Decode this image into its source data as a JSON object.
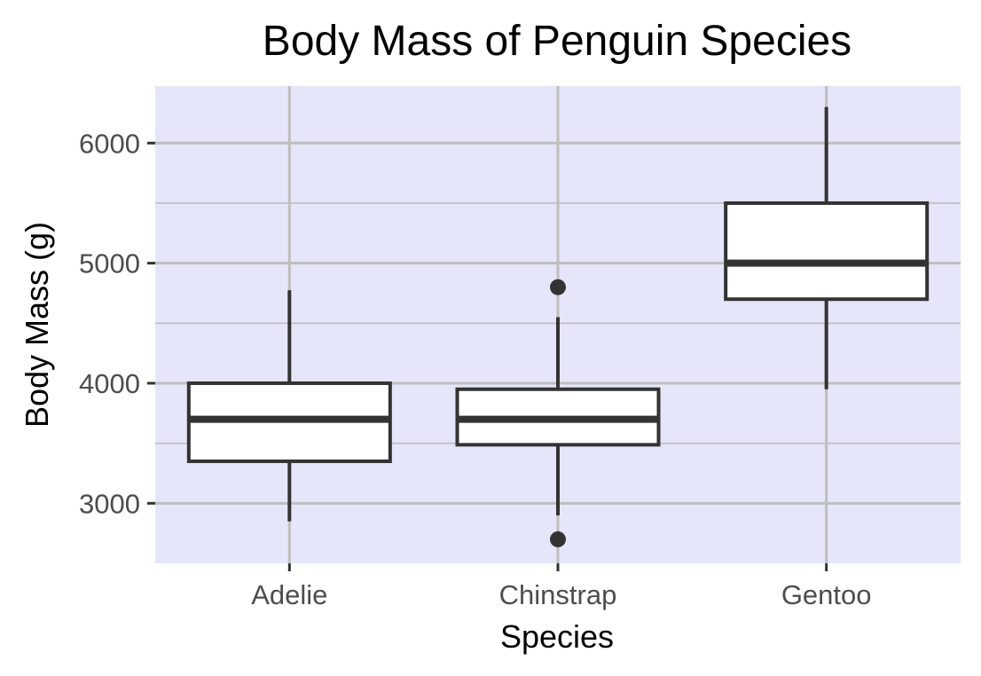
{
  "chart_data": {
    "type": "boxplot",
    "title": "Body Mass of Penguin Species",
    "xlabel": "Species",
    "ylabel": "Body Mass (g)",
    "categories": [
      "Adelie",
      "Chinstrap",
      "Gentoo"
    ],
    "ylim": [
      2500,
      6475
    ],
    "y_ticks": [
      3000,
      4000,
      5000,
      6000
    ],
    "y_minor_ticks": [
      3500,
      4500,
      5500
    ],
    "grid": true,
    "legend": "none",
    "boxes": [
      {
        "category": "Adelie",
        "whisker_low": 2850,
        "q1": 3350,
        "median": 3700,
        "q3": 4000,
        "whisker_high": 4775,
        "outliers": []
      },
      {
        "category": "Chinstrap",
        "whisker_low": 2900,
        "q1": 3487.5,
        "median": 3700,
        "q3": 3950,
        "whisker_high": 4550,
        "outliers": [
          2700,
          4800
        ]
      },
      {
        "category": "Gentoo",
        "whisker_low": 3950,
        "q1": 4700,
        "median": 5000,
        "q3": 5500,
        "whisker_high": 6300,
        "outliers": []
      }
    ],
    "colors": {
      "panel_background": "#e6e6fa",
      "grid": "#bebebe",
      "box_fill": "#ffffff",
      "box_stroke": "#333333"
    }
  }
}
